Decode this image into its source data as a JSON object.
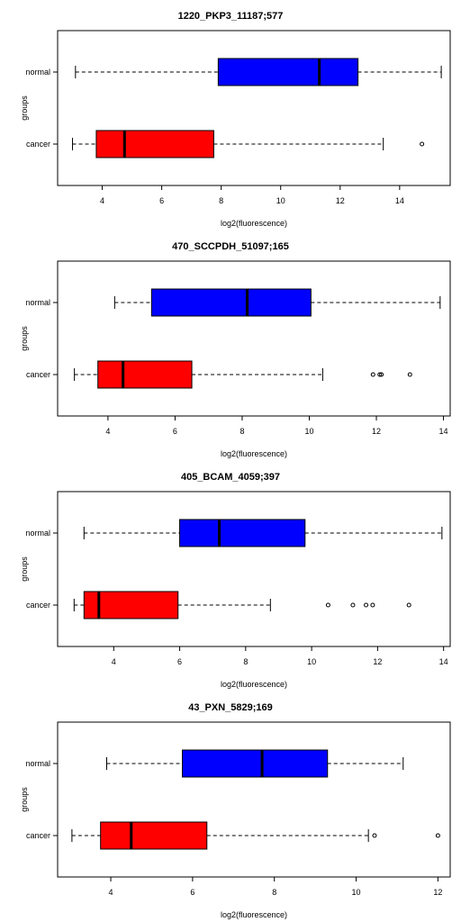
{
  "chart_data": [
    {
      "type": "boxplot",
      "title": "1220_PKP3_11187;577",
      "xlabel": "log2(fluorescence)",
      "ylabel": "groups",
      "xlim": [
        2.5,
        15.7
      ],
      "xticks": [
        4,
        6,
        8,
        10,
        12,
        14
      ],
      "grid": false,
      "legend": "none",
      "series": [
        {
          "name": "normal",
          "color": "#0000ff",
          "whisker_low": 3.1,
          "q1": 7.9,
          "median": 11.3,
          "q3": 12.6,
          "whisker_high": 15.4,
          "outliers": []
        },
        {
          "name": "cancer",
          "color": "#ff0000",
          "whisker_low": 3.0,
          "q1": 3.8,
          "median": 4.75,
          "q3": 7.75,
          "whisker_high": 13.45,
          "outliers": [
            14.75
          ]
        }
      ]
    },
    {
      "type": "boxplot",
      "title": "470_SCCPDH_51097;165",
      "xlabel": "log2(fluorescence)",
      "ylabel": "groups",
      "xlim": [
        2.5,
        14.2
      ],
      "xticks": [
        4,
        6,
        8,
        10,
        12,
        14
      ],
      "grid": false,
      "legend": "none",
      "series": [
        {
          "name": "normal",
          "color": "#0000ff",
          "whisker_low": 4.2,
          "q1": 5.3,
          "median": 8.15,
          "q3": 10.05,
          "whisker_high": 13.9,
          "outliers": []
        },
        {
          "name": "cancer",
          "color": "#ff0000",
          "whisker_low": 3.0,
          "q1": 3.7,
          "median": 4.45,
          "q3": 6.5,
          "whisker_high": 10.4,
          "outliers": [
            11.9,
            12.1,
            12.15,
            13.0
          ]
        }
      ]
    },
    {
      "type": "boxplot",
      "title": "405_BCAM_4059;397",
      "xlabel": "log2(fluorescence)",
      "ylabel": "groups",
      "xlim": [
        2.3,
        14.2
      ],
      "xticks": [
        4,
        6,
        8,
        10,
        12,
        14
      ],
      "grid": false,
      "legend": "none",
      "series": [
        {
          "name": "normal",
          "color": "#0000ff",
          "whisker_low": 3.1,
          "q1": 6.0,
          "median": 7.2,
          "q3": 9.8,
          "whisker_high": 13.95,
          "outliers": []
        },
        {
          "name": "cancer",
          "color": "#ff0000",
          "whisker_low": 2.8,
          "q1": 3.1,
          "median": 3.55,
          "q3": 5.95,
          "whisker_high": 8.75,
          "outliers": [
            10.5,
            11.25,
            11.65,
            11.85,
            12.95
          ]
        }
      ]
    },
    {
      "type": "boxplot",
      "title": "43_PXN_5829;169",
      "xlabel": "log2(fluorescence)",
      "ylabel": "groups",
      "xlim": [
        2.7,
        12.3
      ],
      "xticks": [
        4,
        6,
        8,
        10,
        12
      ],
      "grid": false,
      "legend": "none",
      "series": [
        {
          "name": "normal",
          "color": "#0000ff",
          "whisker_low": 3.9,
          "q1": 5.75,
          "median": 7.7,
          "q3": 9.3,
          "whisker_high": 11.15,
          "outliers": []
        },
        {
          "name": "cancer",
          "color": "#ff0000",
          "whisker_low": 3.05,
          "q1": 3.75,
          "median": 4.5,
          "q3": 6.35,
          "whisker_high": 10.3,
          "outliers": [
            10.45,
            12.0
          ]
        }
      ]
    }
  ]
}
